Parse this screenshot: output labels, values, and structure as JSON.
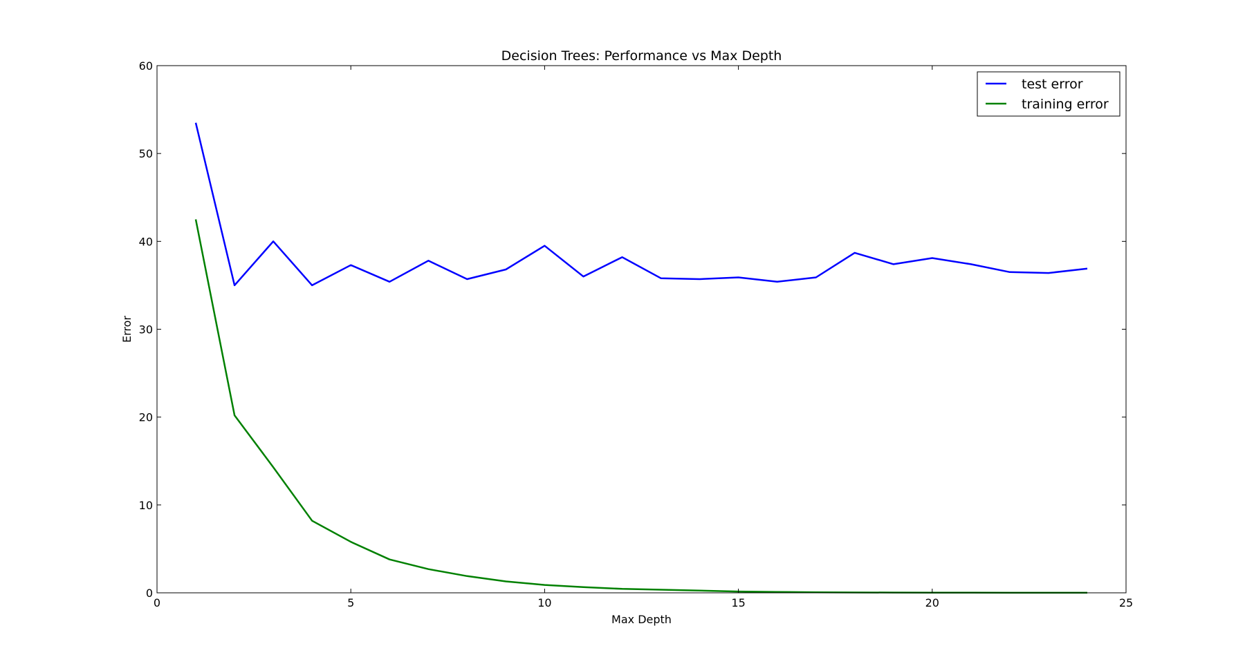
{
  "chart_data": {
    "type": "line",
    "title": "Decision Trees: Performance vs Max Depth",
    "xlabel": "Max Depth",
    "ylabel": "Error",
    "xlim": [
      0,
      25
    ],
    "ylim": [
      0,
      60
    ],
    "xticks": [
      0,
      5,
      10,
      15,
      20,
      25
    ],
    "yticks": [
      0,
      10,
      20,
      30,
      40,
      50,
      60
    ],
    "grid": false,
    "legend_position": "top-right",
    "x": [
      1,
      2,
      3,
      4,
      5,
      6,
      7,
      8,
      9,
      10,
      11,
      12,
      13,
      14,
      15,
      16,
      17,
      18,
      19,
      20,
      21,
      22,
      23,
      24
    ],
    "series": [
      {
        "name": "test error",
        "color": "#0000ff",
        "values": [
          53.5,
          35.0,
          40.0,
          35.0,
          37.3,
          35.4,
          37.8,
          35.7,
          36.8,
          39.5,
          36.0,
          38.2,
          35.8,
          35.7,
          35.9,
          35.4,
          35.9,
          38.7,
          37.4,
          38.1,
          37.4,
          36.5,
          36.4,
          36.9
        ]
      },
      {
        "name": "training error",
        "color": "#008000",
        "values": [
          42.5,
          20.2,
          14.3,
          8.2,
          5.8,
          3.8,
          2.7,
          1.9,
          1.3,
          0.9,
          0.65,
          0.45,
          0.35,
          0.25,
          0.15,
          0.1,
          0.06,
          0.04,
          0.03,
          0.02,
          0.02,
          0.01,
          0.01,
          0.01
        ]
      }
    ]
  }
}
